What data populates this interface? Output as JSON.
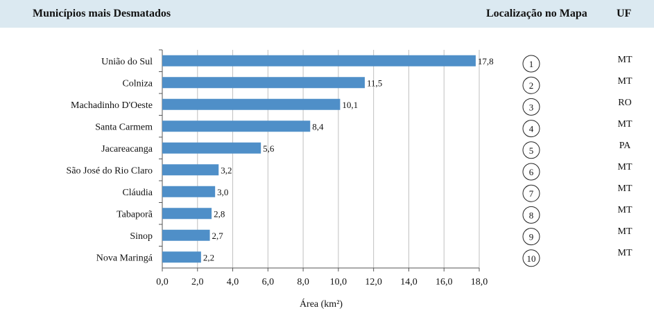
{
  "header": {
    "title": "Municípios mais Desmatados",
    "map_location": "Localização no Mapa",
    "uf": "UF"
  },
  "chart_data": {
    "type": "bar",
    "orientation": "horizontal",
    "categories": [
      "União do Sul",
      "Colniza",
      "Machadinho D'Oeste",
      "Santa Carmem",
      "Jacareacanga",
      "São José do Rio Claro",
      "Cláudia",
      "Tabaporã",
      "Sinop",
      "Nova Maringá"
    ],
    "values": [
      17.8,
      11.5,
      10.1,
      8.4,
      5.6,
      3.2,
      3.0,
      2.8,
      2.7,
      2.2
    ],
    "value_labels": [
      "17,8",
      "11,5",
      "10,1",
      "8,4",
      "5,6",
      "3,2",
      "3,0",
      "2,8",
      "2,7",
      "2,2"
    ],
    "xlabel": "Área (km²)",
    "xlim": [
      0,
      18
    ],
    "xticks": [
      "0,0",
      "2,0",
      "4,0",
      "6,0",
      "8,0",
      "10,0",
      "12,0",
      "14,0",
      "16,0",
      "18,0"
    ],
    "grid": true,
    "bar_color": "#4f8fc8"
  },
  "map_numbers": [
    "1",
    "2",
    "3",
    "4",
    "5",
    "6",
    "7",
    "8",
    "9",
    "10"
  ],
  "uf_list": [
    "MT",
    "MT",
    "RO",
    "MT",
    "PA",
    "MT",
    "MT",
    "MT",
    "MT",
    "MT"
  ]
}
